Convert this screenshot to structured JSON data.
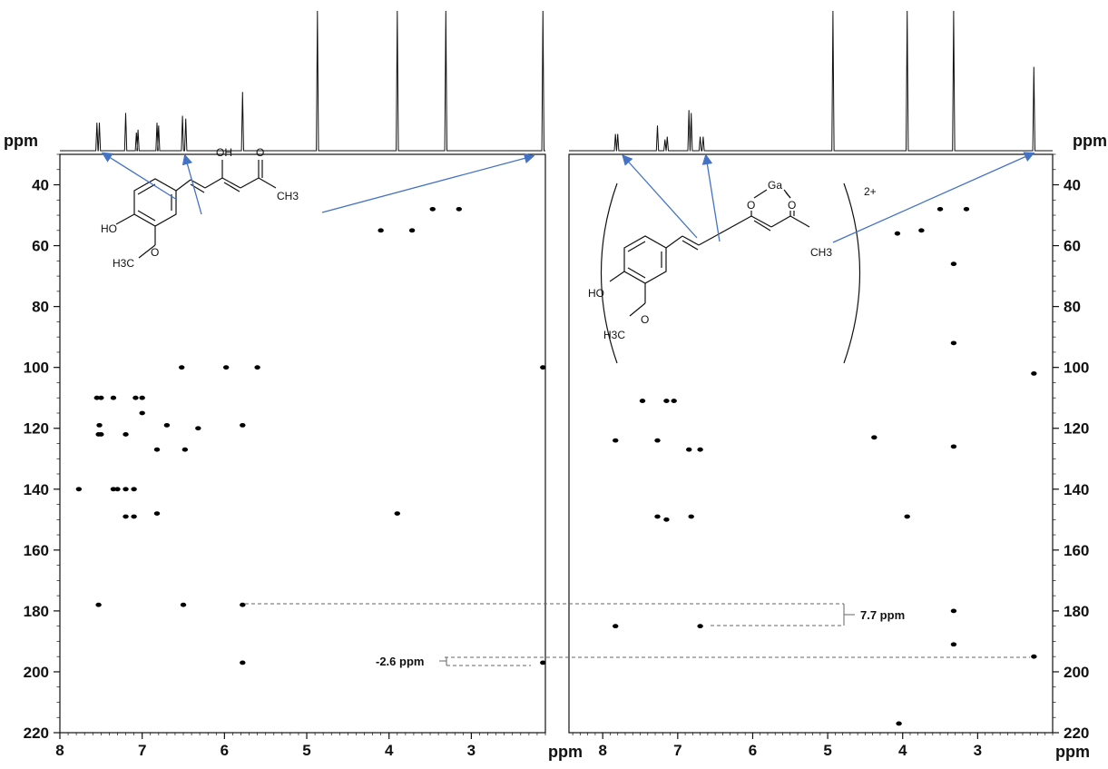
{
  "chart_data": [
    {
      "type": "scatter",
      "subtype": "2D NMR (HMBC) with 1H projection",
      "title": "",
      "x_unit": "ppm",
      "y_unit": "ppm",
      "xlim": [
        8.0,
        2.1
      ],
      "ylim": [
        30,
        220
      ],
      "x_ticks": [
        "8",
        "7",
        "6",
        "5",
        "4",
        "3"
      ],
      "y_ticks": [
        "40",
        "60",
        "80",
        "100",
        "120",
        "140",
        "160",
        "180",
        "200",
        "220"
      ],
      "grid": false,
      "molecule_labels": [
        "OH",
        "O",
        "CH3",
        "HO",
        "H3C",
        "O"
      ],
      "projection_peaks": [
        {
          "x": 7.55,
          "h": 0.2
        },
        {
          "x": 7.52,
          "h": 0.2
        },
        {
          "x": 7.2,
          "h": 0.27
        },
        {
          "x": 7.07,
          "h": 0.13
        },
        {
          "x": 7.05,
          "h": 0.15
        },
        {
          "x": 6.82,
          "h": 0.2
        },
        {
          "x": 6.8,
          "h": 0.18
        },
        {
          "x": 6.51,
          "h": 0.25
        },
        {
          "x": 6.47,
          "h": 0.23
        },
        {
          "x": 5.78,
          "h": 0.42
        },
        {
          "x": 4.87,
          "h": 1.0
        },
        {
          "x": 3.9,
          "h": 1.0
        },
        {
          "x": 3.31,
          "h": 1.0
        },
        {
          "x": 2.13,
          "h": 1.0
        }
      ],
      "cross_peaks": [
        {
          "x": 7.77,
          "y": 140
        },
        {
          "x": 7.55,
          "y": 110
        },
        {
          "x": 7.5,
          "y": 110
        },
        {
          "x": 7.53,
          "y": 122
        },
        {
          "x": 7.5,
          "y": 122
        },
        {
          "x": 7.52,
          "y": 119
        },
        {
          "x": 7.53,
          "y": 178
        },
        {
          "x": 7.35,
          "y": 110
        },
        {
          "x": 7.35,
          "y": 140
        },
        {
          "x": 7.3,
          "y": 140
        },
        {
          "x": 7.2,
          "y": 122
        },
        {
          "x": 7.2,
          "y": 140
        },
        {
          "x": 7.2,
          "y": 149
        },
        {
          "x": 7.08,
          "y": 110
        },
        {
          "x": 7.0,
          "y": 110
        },
        {
          "x": 7.1,
          "y": 140
        },
        {
          "x": 7.1,
          "y": 149
        },
        {
          "x": 7.0,
          "y": 115
        },
        {
          "x": 6.82,
          "y": 127
        },
        {
          "x": 6.82,
          "y": 148
        },
        {
          "x": 6.7,
          "y": 119
        },
        {
          "x": 6.52,
          "y": 100
        },
        {
          "x": 6.48,
          "y": 127
        },
        {
          "x": 6.5,
          "y": 178
        },
        {
          "x": 6.32,
          "y": 120
        },
        {
          "x": 5.98,
          "y": 100
        },
        {
          "x": 5.6,
          "y": 100
        },
        {
          "x": 5.78,
          "y": 119
        },
        {
          "x": 5.78,
          "y": 178
        },
        {
          "x": 5.78,
          "y": 197
        },
        {
          "x": 4.1,
          "y": 55
        },
        {
          "x": 3.9,
          "y": 148
        },
        {
          "x": 3.72,
          "y": 55
        },
        {
          "x": 3.47,
          "y": 48
        },
        {
          "x": 3.15,
          "y": 48
        },
        {
          "x": 2.13,
          "y": 100
        },
        {
          "x": 2.13,
          "y": 197
        }
      ]
    },
    {
      "type": "scatter",
      "subtype": "2D NMR (HMBC) with 1H projection",
      "title": "",
      "x_unit": "ppm",
      "y_unit": "ppm",
      "xlim": [
        8.45,
        2.0
      ],
      "ylim": [
        30,
        220
      ],
      "x_ticks": [
        "8",
        "7",
        "6",
        "5",
        "4",
        "3"
      ],
      "y_ticks": [
        "40",
        "60",
        "80",
        "100",
        "120",
        "140",
        "160",
        "180",
        "200",
        "220"
      ],
      "grid": false,
      "molecule_labels": [
        "Ga",
        "O",
        "O",
        "2+",
        "HO",
        "CH3",
        "H3C",
        "O"
      ],
      "projection_peaks": [
        {
          "x": 7.83,
          "h": 0.12
        },
        {
          "x": 7.8,
          "h": 0.12
        },
        {
          "x": 7.27,
          "h": 0.18
        },
        {
          "x": 7.17,
          "h": 0.08
        },
        {
          "x": 7.14,
          "h": 0.1
        },
        {
          "x": 6.85,
          "h": 0.29
        },
        {
          "x": 6.82,
          "h": 0.27
        },
        {
          "x": 6.7,
          "h": 0.1
        },
        {
          "x": 6.66,
          "h": 0.1
        },
        {
          "x": 4.93,
          "h": 1.0
        },
        {
          "x": 3.94,
          "h": 1.0
        },
        {
          "x": 3.32,
          "h": 1.0
        },
        {
          "x": 2.25,
          "h": 0.6
        }
      ],
      "cross_peaks": [
        {
          "x": 7.83,
          "y": 124
        },
        {
          "x": 7.83,
          "y": 185
        },
        {
          "x": 7.47,
          "y": 111
        },
        {
          "x": 7.15,
          "y": 111
        },
        {
          "x": 7.05,
          "y": 111
        },
        {
          "x": 7.27,
          "y": 124
        },
        {
          "x": 7.27,
          "y": 149
        },
        {
          "x": 7.15,
          "y": 150
        },
        {
          "x": 6.85,
          "y": 127
        },
        {
          "x": 6.82,
          "y": 149
        },
        {
          "x": 6.7,
          "y": 127
        },
        {
          "x": 6.7,
          "y": 185
        },
        {
          "x": 4.38,
          "y": 123
        },
        {
          "x": 4.07,
          "y": 56
        },
        {
          "x": 4.05,
          "y": 217
        },
        {
          "x": 3.94,
          "y": 149
        },
        {
          "x": 3.75,
          "y": 55
        },
        {
          "x": 3.5,
          "y": 48
        },
        {
          "x": 3.32,
          "y": 66
        },
        {
          "x": 3.32,
          "y": 92
        },
        {
          "x": 3.32,
          "y": 126
        },
        {
          "x": 3.32,
          "y": 180
        },
        {
          "x": 3.32,
          "y": 191
        },
        {
          "x": 3.15,
          "y": 48
        },
        {
          "x": 2.25,
          "y": 102
        },
        {
          "x": 2.25,
          "y": 195
        }
      ]
    }
  ],
  "annotations": {
    "delta_left": "-2.6 ppm",
    "delta_right": "7.7 ppm"
  },
  "colors": {
    "arrow": "#4472c4",
    "ink": "#111111"
  }
}
